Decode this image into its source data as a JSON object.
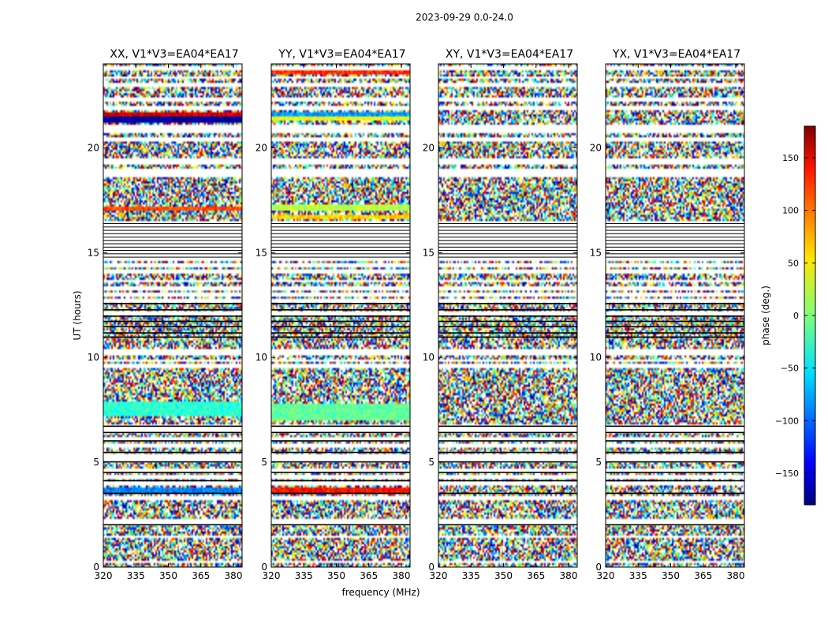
{
  "chart_data": {
    "type": "heatmap",
    "suptitle": "2023-09-29 0.0-24.0",
    "xlabel": "frequency (MHz)",
    "ylabel": "UT (hours)",
    "xlim": [
      320,
      384
    ],
    "ylim": [
      0,
      24
    ],
    "xticks": [
      320,
      335,
      350,
      365,
      380
    ],
    "yticks": [
      0,
      5,
      10,
      15,
      20
    ],
    "panels": [
      {
        "title": "XX, V1*V3=EA04*EA17",
        "pol": "XX",
        "bands": [
          [
            3.5,
            3.75,
            -90
          ],
          [
            7.2,
            7.9,
            -30
          ],
          [
            17.0,
            17.2,
            110
          ],
          [
            21.2,
            21.5,
            -170
          ],
          [
            21.5,
            21.7,
            150
          ]
        ]
      },
      {
        "title": "YY, V1*V3=EA04*EA17",
        "pol": "YY",
        "bands": [
          [
            3.5,
            3.75,
            130
          ],
          [
            7.0,
            7.8,
            -10
          ],
          [
            16.6,
            16.8,
            60
          ],
          [
            17.0,
            17.3,
            20
          ],
          [
            21.3,
            21.5,
            40
          ],
          [
            21.5,
            21.7,
            -80
          ],
          [
            23.5,
            23.7,
            120
          ]
        ]
      },
      {
        "title": "XY, V1*V3=EA04*EA17",
        "pol": "XY",
        "bands": []
      },
      {
        "title": "YX, V1*V3=EA04*EA17",
        "pol": "YX",
        "bands": []
      }
    ],
    "flagged_rows_hours": [
      0.25,
      1.45,
      2.05,
      2.2,
      3.3,
      4.0,
      4.3,
      4.6,
      5.1,
      5.3,
      5.8,
      6.1,
      6.5,
      6.7,
      9.6,
      9.85,
      10.15,
      10.3,
      12.1,
      12.7,
      13.0,
      13.3,
      13.65,
      14.1,
      14.4,
      14.7,
      18.7,
      18.9,
      19.3,
      19.45,
      20.4,
      20.8,
      21.0,
      21.9,
      22.3,
      23.0,
      23.35,
      23.8
    ],
    "dark_rows_hours": [
      2.05,
      3.55,
      4.15,
      4.55,
      5.05,
      5.5,
      6.05,
      6.45,
      6.75,
      11.0,
      11.2,
      11.5,
      11.75,
      12.0,
      12.3,
      12.6
    ],
    "blank_band_hours": [
      14.8,
      16.5
    ],
    "colorbar": {
      "label": "phase (deg.)",
      "ticks": [
        150,
        100,
        50,
        0,
        -50,
        -100,
        -150
      ],
      "tick_labels": [
        "150",
        "100",
        "50",
        "0",
        "−50",
        "−100",
        "−150"
      ],
      "range": [
        -180,
        180
      ],
      "cmap": "jet"
    }
  }
}
